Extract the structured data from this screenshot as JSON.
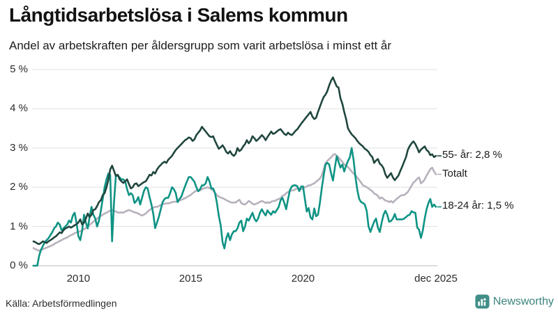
{
  "header": {
    "title": "Långtidsarbetslösa i Salems kommun",
    "subtitle": "Andel av arbetskraften per åldersgrupp som varit arbetslösa i minst ett år"
  },
  "footer": {
    "source": "Källa: Arbetsförmedlingen",
    "brand": "Newsworthy"
  },
  "colors": {
    "series_55": "#1f463e",
    "series_total": "#b7b1bc",
    "series_18_24": "#0e9384",
    "gridline": "#e3e3e3",
    "baseline": "#c8c8c8",
    "logo_teal": "#418e88",
    "text_dark": "#1a1a1a"
  },
  "chart_data": {
    "type": "line",
    "unit": "%",
    "x_interval": "monthly",
    "x_start": "2008-01",
    "x_end": "2025-12",
    "ylim": [
      0,
      5
    ],
    "grid": true,
    "legend_position": "right-end-labels",
    "yticks": [
      {
        "label": "0 %",
        "value": 0
      },
      {
        "label": "1 %",
        "value": 1
      },
      {
        "label": "2 %",
        "value": 2
      },
      {
        "label": "3 %",
        "value": 3
      },
      {
        "label": "4 %",
        "value": 4
      },
      {
        "label": "5 %",
        "value": 5
      }
    ],
    "xticks": [
      {
        "label": "2010",
        "month_index": 24
      },
      {
        "label": "2015",
        "month_index": 84
      },
      {
        "label": "2020",
        "month_index": 144
      },
      {
        "label": "dec 2025",
        "month_index": 215
      }
    ],
    "series": [
      {
        "name": "Totalt",
        "end_label": "Totalt",
        "end_value_text": "",
        "color": "#b7b1bc",
        "values": [
          0.45,
          0.42,
          0.4,
          0.38,
          0.4,
          0.42,
          0.44,
          0.46,
          0.48,
          0.5,
          0.52,
          0.55,
          0.58,
          0.6,
          0.63,
          0.65,
          0.68,
          0.7,
          0.72,
          0.75,
          0.78,
          0.8,
          0.83,
          0.85,
          0.86,
          0.88,
          0.9,
          0.93,
          0.96,
          1.0,
          1.04,
          1.08,
          1.12,
          1.16,
          1.2,
          1.24,
          1.27,
          1.3,
          1.33,
          1.35,
          1.38,
          1.4,
          1.42,
          1.4,
          1.38,
          1.36,
          1.35,
          1.36,
          1.35,
          1.38,
          1.4,
          1.42,
          1.4,
          1.38,
          1.36,
          1.35,
          1.33,
          1.3,
          1.28,
          1.3,
          1.33,
          1.38,
          1.42,
          1.45,
          1.48,
          1.5,
          1.5,
          1.52,
          1.55,
          1.57,
          1.58,
          1.59,
          1.59,
          1.6,
          1.62,
          1.63,
          1.63,
          1.64,
          1.66,
          1.68,
          1.7,
          1.72,
          1.75,
          1.78,
          1.8,
          1.85,
          1.88,
          1.92,
          1.9,
          1.92,
          1.95,
          1.97,
          1.98,
          2.0,
          1.98,
          1.95,
          1.92,
          1.85,
          1.8,
          1.76,
          1.74,
          1.72,
          1.7,
          1.67,
          1.65,
          1.62,
          1.61,
          1.61,
          1.61,
          1.65,
          1.68,
          1.6,
          1.57,
          1.56,
          1.6,
          1.65,
          1.62,
          1.58,
          1.56,
          1.58,
          1.6,
          1.63,
          1.65,
          1.63,
          1.6,
          1.62,
          1.6,
          1.63,
          1.65,
          1.65,
          1.68,
          1.7,
          1.72,
          1.78,
          1.8,
          1.85,
          1.88,
          1.9,
          1.92,
          1.92,
          1.95,
          1.97,
          1.97,
          1.95,
          1.97,
          2.0,
          2.02,
          2.05,
          2.05,
          2.08,
          2.1,
          2.14,
          2.18,
          2.22,
          2.3,
          2.45,
          2.62,
          2.67,
          2.72,
          2.76,
          2.82,
          2.85,
          2.8,
          2.76,
          2.7,
          2.65,
          2.58,
          2.55,
          2.52,
          2.46,
          2.4,
          2.35,
          2.3,
          2.25,
          2.18,
          2.12,
          2.05,
          2.03,
          2.0,
          1.97,
          1.93,
          1.9,
          1.84,
          1.82,
          1.78,
          1.71,
          1.74,
          1.7,
          1.66,
          1.65,
          1.62,
          1.65,
          1.61,
          1.66,
          1.7,
          1.74,
          1.78,
          1.8,
          1.8,
          1.84,
          1.88,
          1.96,
          2.04,
          2.12,
          2.16,
          2.22,
          2.25,
          2.1,
          2.14,
          2.2,
          2.3,
          2.38,
          2.46,
          2.5,
          2.4,
          2.33
        ]
      },
      {
        "name": "18-24 år",
        "end_label": "18-24 år: 1,5 %",
        "end_value_text": "1,5 %",
        "color": "#0e9384",
        "values": [
          0.0,
          0.0,
          0.0,
          0.25,
          0.4,
          0.5,
          0.6,
          0.65,
          0.7,
          0.78,
          0.85,
          0.95,
          1.0,
          1.1,
          1.05,
          0.9,
          0.95,
          1.0,
          1.05,
          1.15,
          1.1,
          1.28,
          1.35,
          1.1,
          0.75,
          0.65,
          0.9,
          1.3,
          1.1,
          0.95,
          1.25,
          1.5,
          1.3,
          1.2,
          1.0,
          1.15,
          1.4,
          1.7,
          2.0,
          2.2,
          2.35,
          2.32,
          0.62,
          1.6,
          2.29,
          2.3,
          2.25,
          2.2,
          2.2,
          2.15,
          1.95,
          1.8,
          1.85,
          1.8,
          1.6,
          1.65,
          1.75,
          1.56,
          1.73,
          1.9,
          2.0,
          1.97,
          1.75,
          1.56,
          1.32,
          0.96,
          1.1,
          1.25,
          1.44,
          1.62,
          1.7,
          1.73,
          1.73,
          1.85,
          2.0,
          1.95,
          1.85,
          1.62,
          1.7,
          1.76,
          1.9,
          2.03,
          2.15,
          2.26,
          2.26,
          2.2,
          2.14,
          2.0,
          1.9,
          1.95,
          2.05,
          2.05,
          2.1,
          2.26,
          2.15,
          1.97,
          1.97,
          1.85,
          1.6,
          1.27,
          1.03,
          0.6,
          0.44,
          0.7,
          0.83,
          0.65,
          0.8,
          0.88,
          0.88,
          0.95,
          1.1,
          1.15,
          0.88,
          1.0,
          1.2,
          1.15,
          1.25,
          1.35,
          1.2,
          1.13,
          1.2,
          1.35,
          1.44,
          1.35,
          1.28,
          1.41,
          1.35,
          1.3,
          1.39,
          1.35,
          1.42,
          1.5,
          1.67,
          1.73,
          1.6,
          1.44,
          1.7,
          1.93,
          2.02,
          2.05,
          2.05,
          2.02,
          1.9,
          2.02,
          2.02,
          1.7,
          1.38,
          1.47,
          1.23,
          1.18,
          1.46,
          1.26,
          1.3,
          1.6,
          1.97,
          2.3,
          2.58,
          2.62,
          2.58,
          2.35,
          2.17,
          2.5,
          2.79,
          2.65,
          2.5,
          2.58,
          2.4,
          2.55,
          2.67,
          2.76,
          3.0,
          2.7,
          2.26,
          1.93,
          1.7,
          1.62,
          1.6,
          1.56,
          1.4,
          1.0,
          0.86,
          1.0,
          1.12,
          1.2,
          0.97,
          0.86,
          1.1,
          1.3,
          1.4,
          1.3,
          1.12,
          1.14,
          1.2,
          1.32,
          1.18,
          1.18,
          1.18,
          1.18,
          1.2,
          1.24,
          1.28,
          1.3,
          1.39,
          1.36,
          1.35,
          0.97,
          0.92,
          0.71,
          0.9,
          1.2,
          1.44,
          1.6,
          1.7,
          1.5,
          1.56,
          1.5
        ]
      },
      {
        "name": "55- år",
        "end_label": "55- år: 2,8 %",
        "end_value_text": "2,8 %",
        "color": "#1f463e",
        "values": [
          0.62,
          0.6,
          0.57,
          0.55,
          0.58,
          0.62,
          0.6,
          0.58,
          0.62,
          0.65,
          0.68,
          0.72,
          0.75,
          0.8,
          0.85,
          0.83,
          0.9,
          0.95,
          0.97,
          1.0,
          0.97,
          1.0,
          1.03,
          1.06,
          1.1,
          1.18,
          1.05,
          1.1,
          1.2,
          1.33,
          1.24,
          1.3,
          1.42,
          1.44,
          1.52,
          1.62,
          1.67,
          1.8,
          1.85,
          2.0,
          2.18,
          2.45,
          2.55,
          2.42,
          2.29,
          2.32,
          2.2,
          2.15,
          2.11,
          2.15,
          2.2,
          2.08,
          1.97,
          2.0,
          2.08,
          2.1,
          2.03,
          2.06,
          2.1,
          2.13,
          2.15,
          2.23,
          2.32,
          2.3,
          2.39,
          2.35,
          2.45,
          2.52,
          2.57,
          2.62,
          2.65,
          2.62,
          2.7,
          2.75,
          2.8,
          2.88,
          2.95,
          3.0,
          3.05,
          3.1,
          3.15,
          3.2,
          3.23,
          3.27,
          3.25,
          3.18,
          3.22,
          3.33,
          3.39,
          3.45,
          3.54,
          3.48,
          3.42,
          3.36,
          3.3,
          3.28,
          3.3,
          3.18,
          3.08,
          2.98,
          3.02,
          3.07,
          3.0,
          2.9,
          2.86,
          2.92,
          2.84,
          2.8,
          2.85,
          3.0,
          2.92,
          2.96,
          3.04,
          3.1,
          3.2,
          3.12,
          3.18,
          3.3,
          3.25,
          3.18,
          3.22,
          3.27,
          3.33,
          3.28,
          3.2,
          3.28,
          3.35,
          3.42,
          3.36,
          3.38,
          3.42,
          3.46,
          3.48,
          3.42,
          3.36,
          3.33,
          3.39,
          3.35,
          3.33,
          3.38,
          3.44,
          3.48,
          3.55,
          3.62,
          3.68,
          3.74,
          3.8,
          3.86,
          3.92,
          3.8,
          3.74,
          3.77,
          3.92,
          4.05,
          4.18,
          4.3,
          4.36,
          4.45,
          4.6,
          4.72,
          4.8,
          4.68,
          4.57,
          4.54,
          4.27,
          4.13,
          3.92,
          3.74,
          3.5,
          3.42,
          3.35,
          3.3,
          3.25,
          3.18,
          3.12,
          3.08,
          3.04,
          2.98,
          2.95,
          2.9,
          2.82,
          2.77,
          2.62,
          2.68,
          2.72,
          2.6,
          2.56,
          2.48,
          2.33,
          2.24,
          2.3,
          2.36,
          2.25,
          2.18,
          2.24,
          2.3,
          2.42,
          2.53,
          2.65,
          2.77,
          2.95,
          3.05,
          3.12,
          3.17,
          3.1,
          3.0,
          2.89,
          2.96,
          3.0,
          3.04,
          2.95,
          2.91,
          2.82,
          2.84,
          2.77,
          2.8
        ]
      }
    ]
  }
}
